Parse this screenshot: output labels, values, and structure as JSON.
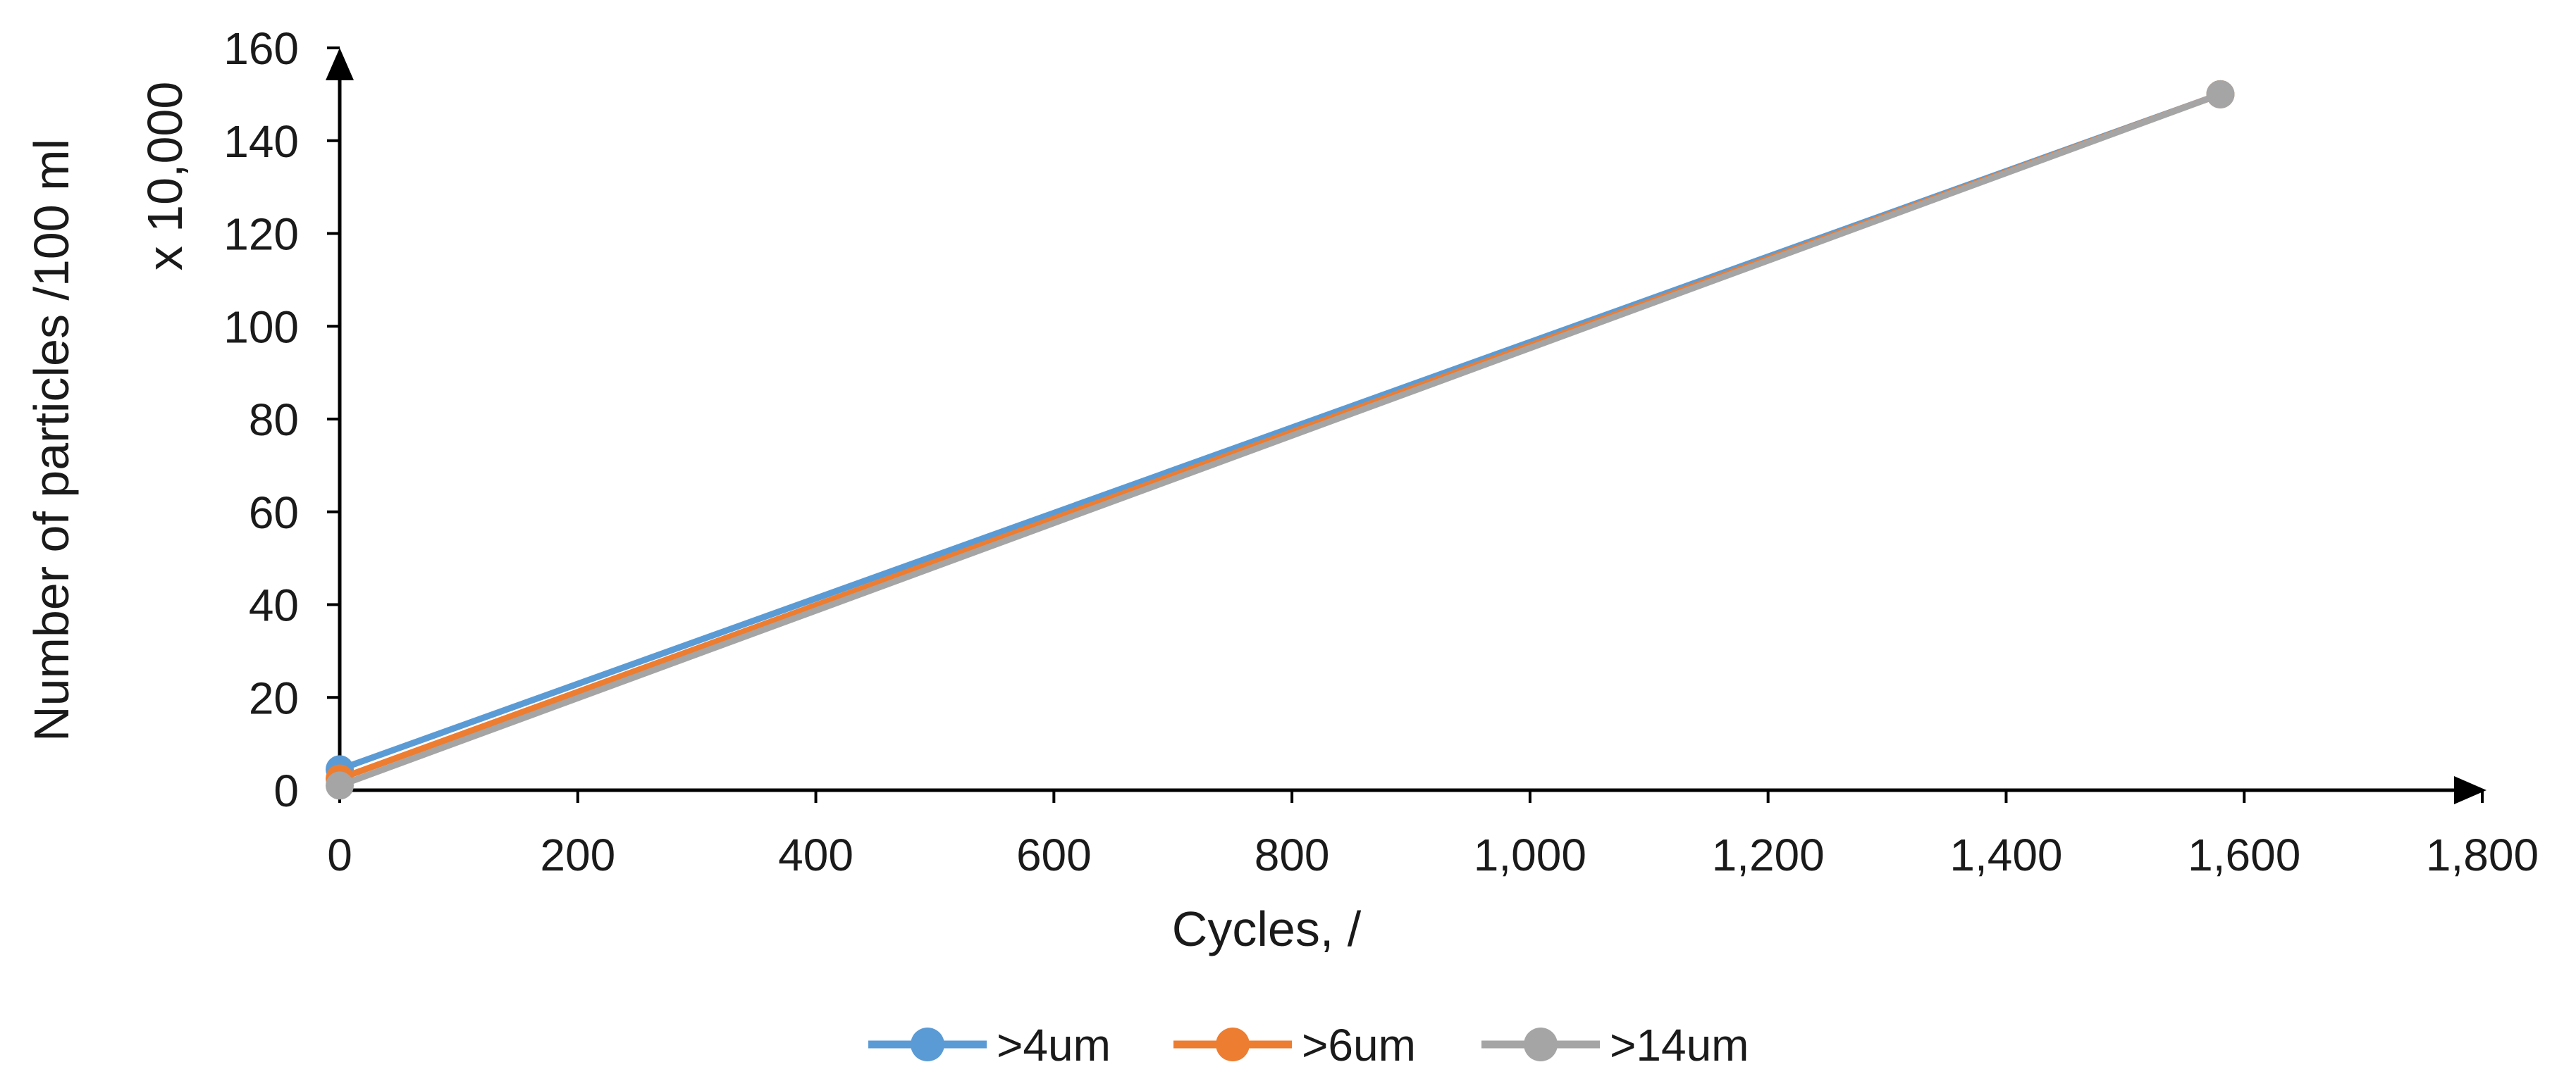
{
  "chart_data": {
    "type": "line",
    "title": "",
    "xlabel": "Cycles, /",
    "ylabel": "Number  of particles /100 ml",
    "ylabel_multiplier": "x 10,000",
    "xlim": [
      0,
      1800
    ],
    "ylim": [
      0,
      160
    ],
    "x_ticks": [
      0,
      200,
      400,
      600,
      800,
      1000,
      1200,
      1400,
      1600,
      1800
    ],
    "x_tick_labels": [
      "0",
      "200",
      "400",
      "600",
      "800",
      "1,000",
      "1,200",
      "1,400",
      "1,600",
      "1,800"
    ],
    "y_ticks": [
      0,
      20,
      40,
      60,
      80,
      100,
      120,
      140,
      160
    ],
    "y_tick_labels": [
      "0",
      "20",
      "40",
      "60",
      "80",
      "100",
      "120",
      "140",
      "160"
    ],
    "grid": false,
    "legend_position": "bottom",
    "series": [
      {
        "name": ">4um",
        "color": "#5B9BD5",
        "x": [
          0,
          1580
        ],
        "y": [
          4.5,
          150
        ]
      },
      {
        "name": ">6um",
        "color": "#ED7D31",
        "x": [
          0,
          1580
        ],
        "y": [
          2.5,
          150
        ]
      },
      {
        "name": ">14um",
        "color": "#A5A5A5",
        "x": [
          0,
          1580
        ],
        "y": [
          1,
          150
        ]
      }
    ]
  }
}
